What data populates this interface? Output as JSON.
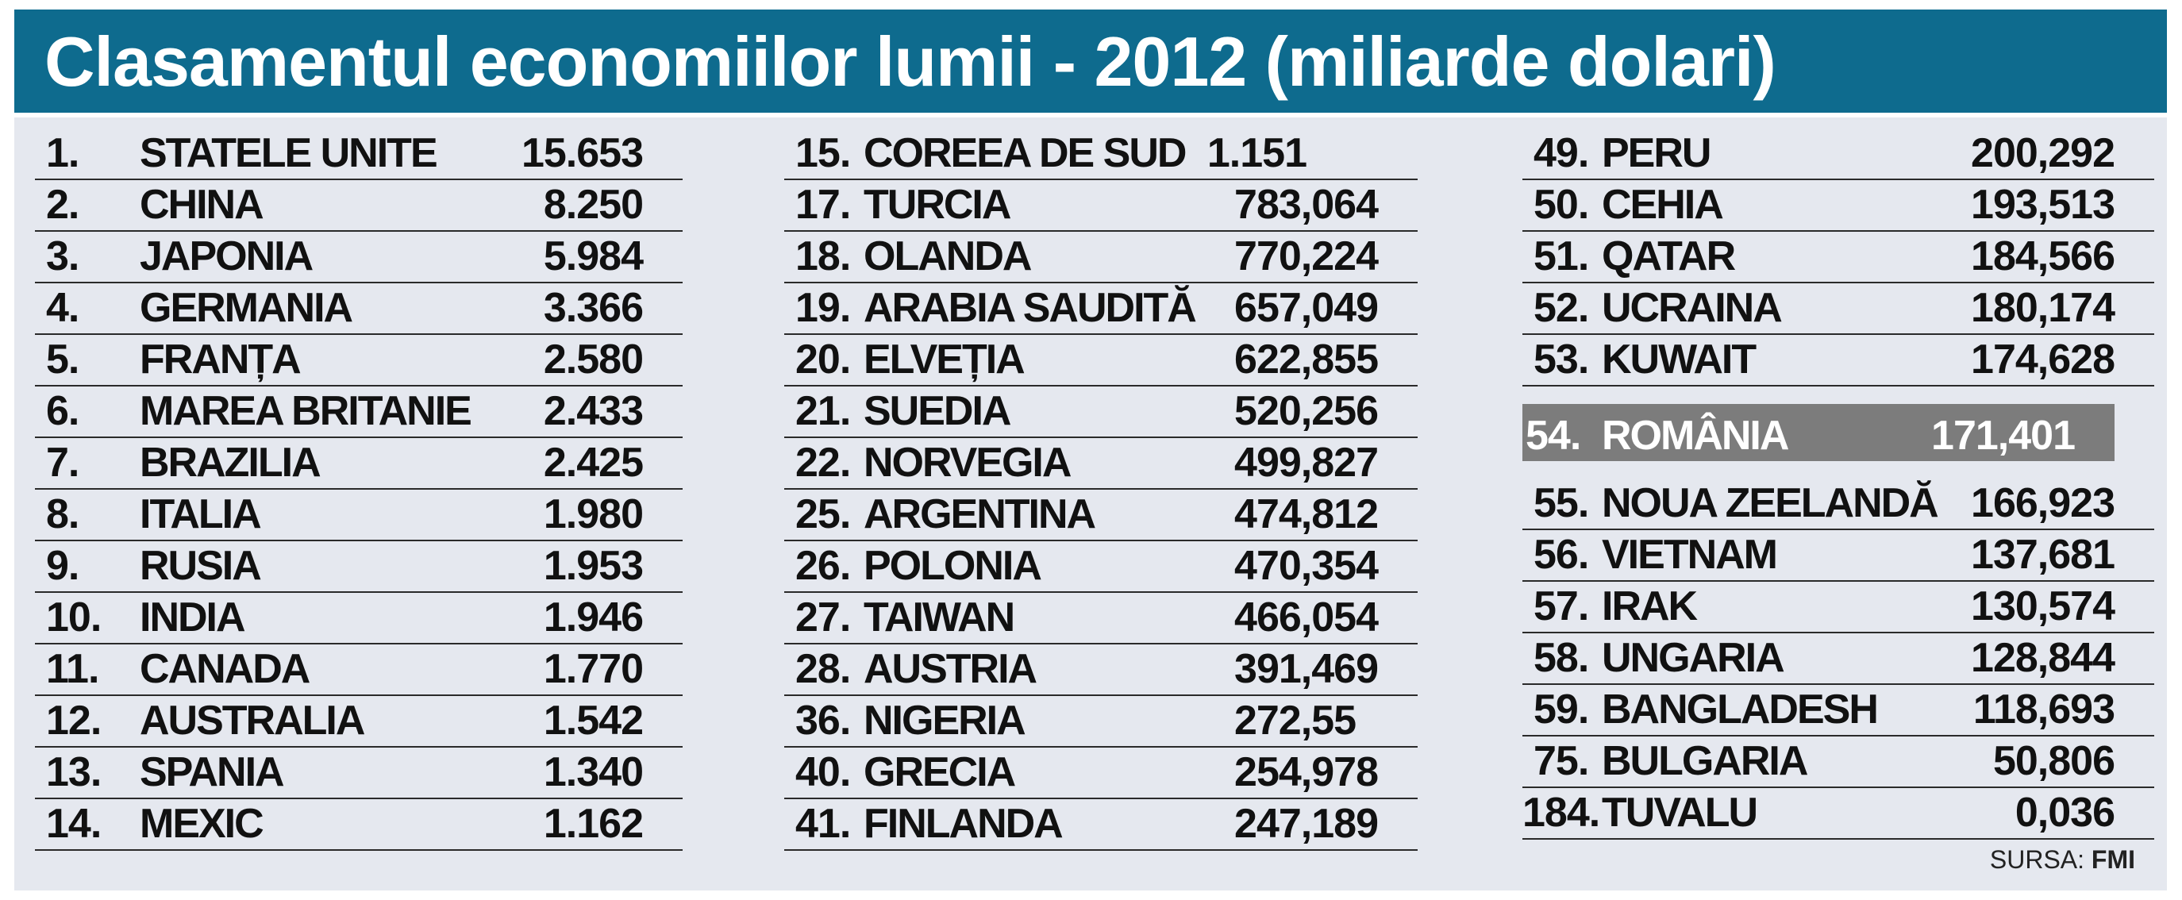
{
  "title": "Clasamentul economiilor lumii - 2012 (miliarde dolari)",
  "columns": [
    {
      "rows": [
        {
          "rank": "1.",
          "name": "STATELE UNITE",
          "value": "15.653"
        },
        {
          "rank": "2.",
          "name": "CHINA",
          "value": "8.250"
        },
        {
          "rank": "3.",
          "name": "JAPONIA",
          "value": "5.984"
        },
        {
          "rank": "4.",
          "name": "GERMANIA",
          "value": "3.366"
        },
        {
          "rank": "5.",
          "name": "FRANȚA",
          "value": "2.580"
        },
        {
          "rank": "6.",
          "name": "MAREA BRITANIE",
          "value": "2.433"
        },
        {
          "rank": "7.",
          "name": "BRAZILIA",
          "value": "2.425"
        },
        {
          "rank": "8.",
          "name": "ITALIA",
          "value": "1.980"
        },
        {
          "rank": "9.",
          "name": "RUSIA",
          "value": "1.953"
        },
        {
          "rank": "10.",
          "name": "INDIA",
          "value": "1.946"
        },
        {
          "rank": "11.",
          "name": "CANADA",
          "value": "1.770"
        },
        {
          "rank": "12.",
          "name": "AUSTRALIA",
          "value": "1.542"
        },
        {
          "rank": "13.",
          "name": "SPANIA",
          "value": "1.340"
        },
        {
          "rank": "14.",
          "name": "MEXIC",
          "value": "1.162"
        }
      ]
    },
    {
      "rows": [
        {
          "rank": "15.",
          "name": "COREEA DE SUD",
          "value": "1.151"
        },
        {
          "rank": "17.",
          "name": "TURCIA",
          "value": "783,064"
        },
        {
          "rank": "18.",
          "name": "OLANDA",
          "value": "770,224"
        },
        {
          "rank": "19.",
          "name": "ARABIA SAUDITĂ",
          "value": "657,049"
        },
        {
          "rank": "20.",
          "name": "ELVEȚIA",
          "value": "622,855"
        },
        {
          "rank": "21.",
          "name": "SUEDIA",
          "value": "520,256"
        },
        {
          "rank": "22.",
          "name": "NORVEGIA",
          "value": "499,827"
        },
        {
          "rank": "25.",
          "name": "ARGENTINA",
          "value": "474,812"
        },
        {
          "rank": "26.",
          "name": "POLONIA",
          "value": "470,354"
        },
        {
          "rank": "27.",
          "name": "TAIWAN",
          "value": "466,054"
        },
        {
          "rank": "28.",
          "name": "AUSTRIA",
          "value": "391,469"
        },
        {
          "rank": "36.",
          "name": "NIGERIA",
          "value": "272,55"
        },
        {
          "rank": "40.",
          "name": "GRECIA",
          "value": "254,978"
        },
        {
          "rank": "41.",
          "name": "FINLANDA",
          "value": "247,189"
        }
      ]
    },
    {
      "rows": [
        {
          "rank": "49.",
          "name": "PERU",
          "value": "200,292"
        },
        {
          "rank": "50.",
          "name": "CEHIA",
          "value": "193,513"
        },
        {
          "rank": "51.",
          "name": "QATAR",
          "value": "184,566"
        },
        {
          "rank": "52.",
          "name": "UCRAINA",
          "value": "180,174"
        },
        {
          "rank": "53.",
          "name": "KUWAIT",
          "value": "174,628"
        },
        {
          "rank": "54.",
          "name": "ROMÂNIA",
          "value": "171,401",
          "highlight": true
        },
        {
          "rank": "55.",
          "name": "NOUA ZEELANDĂ",
          "value": "166,923"
        },
        {
          "rank": "56.",
          "name": "VIETNAM",
          "value": "137,681"
        },
        {
          "rank": "57.",
          "name": "IRAK",
          "value": "130,574"
        },
        {
          "rank": "58.",
          "name": "UNGARIA",
          "value": "128,844"
        },
        {
          "rank": "59.",
          "name": "BANGLADESH",
          "value": "118,693"
        },
        {
          "rank": "75.",
          "name": "BULGARIA",
          "value": "50,806"
        },
        {
          "rank": "184.",
          "name": "TUVALU",
          "value": "0,036"
        }
      ]
    }
  ],
  "source": {
    "label": "SURSA:",
    "name": "FMI"
  },
  "colors": {
    "header_bg": "#0e6b8e",
    "panel_bg": "#e5e8ef",
    "highlight_bg": "#7c7c7c"
  }
}
